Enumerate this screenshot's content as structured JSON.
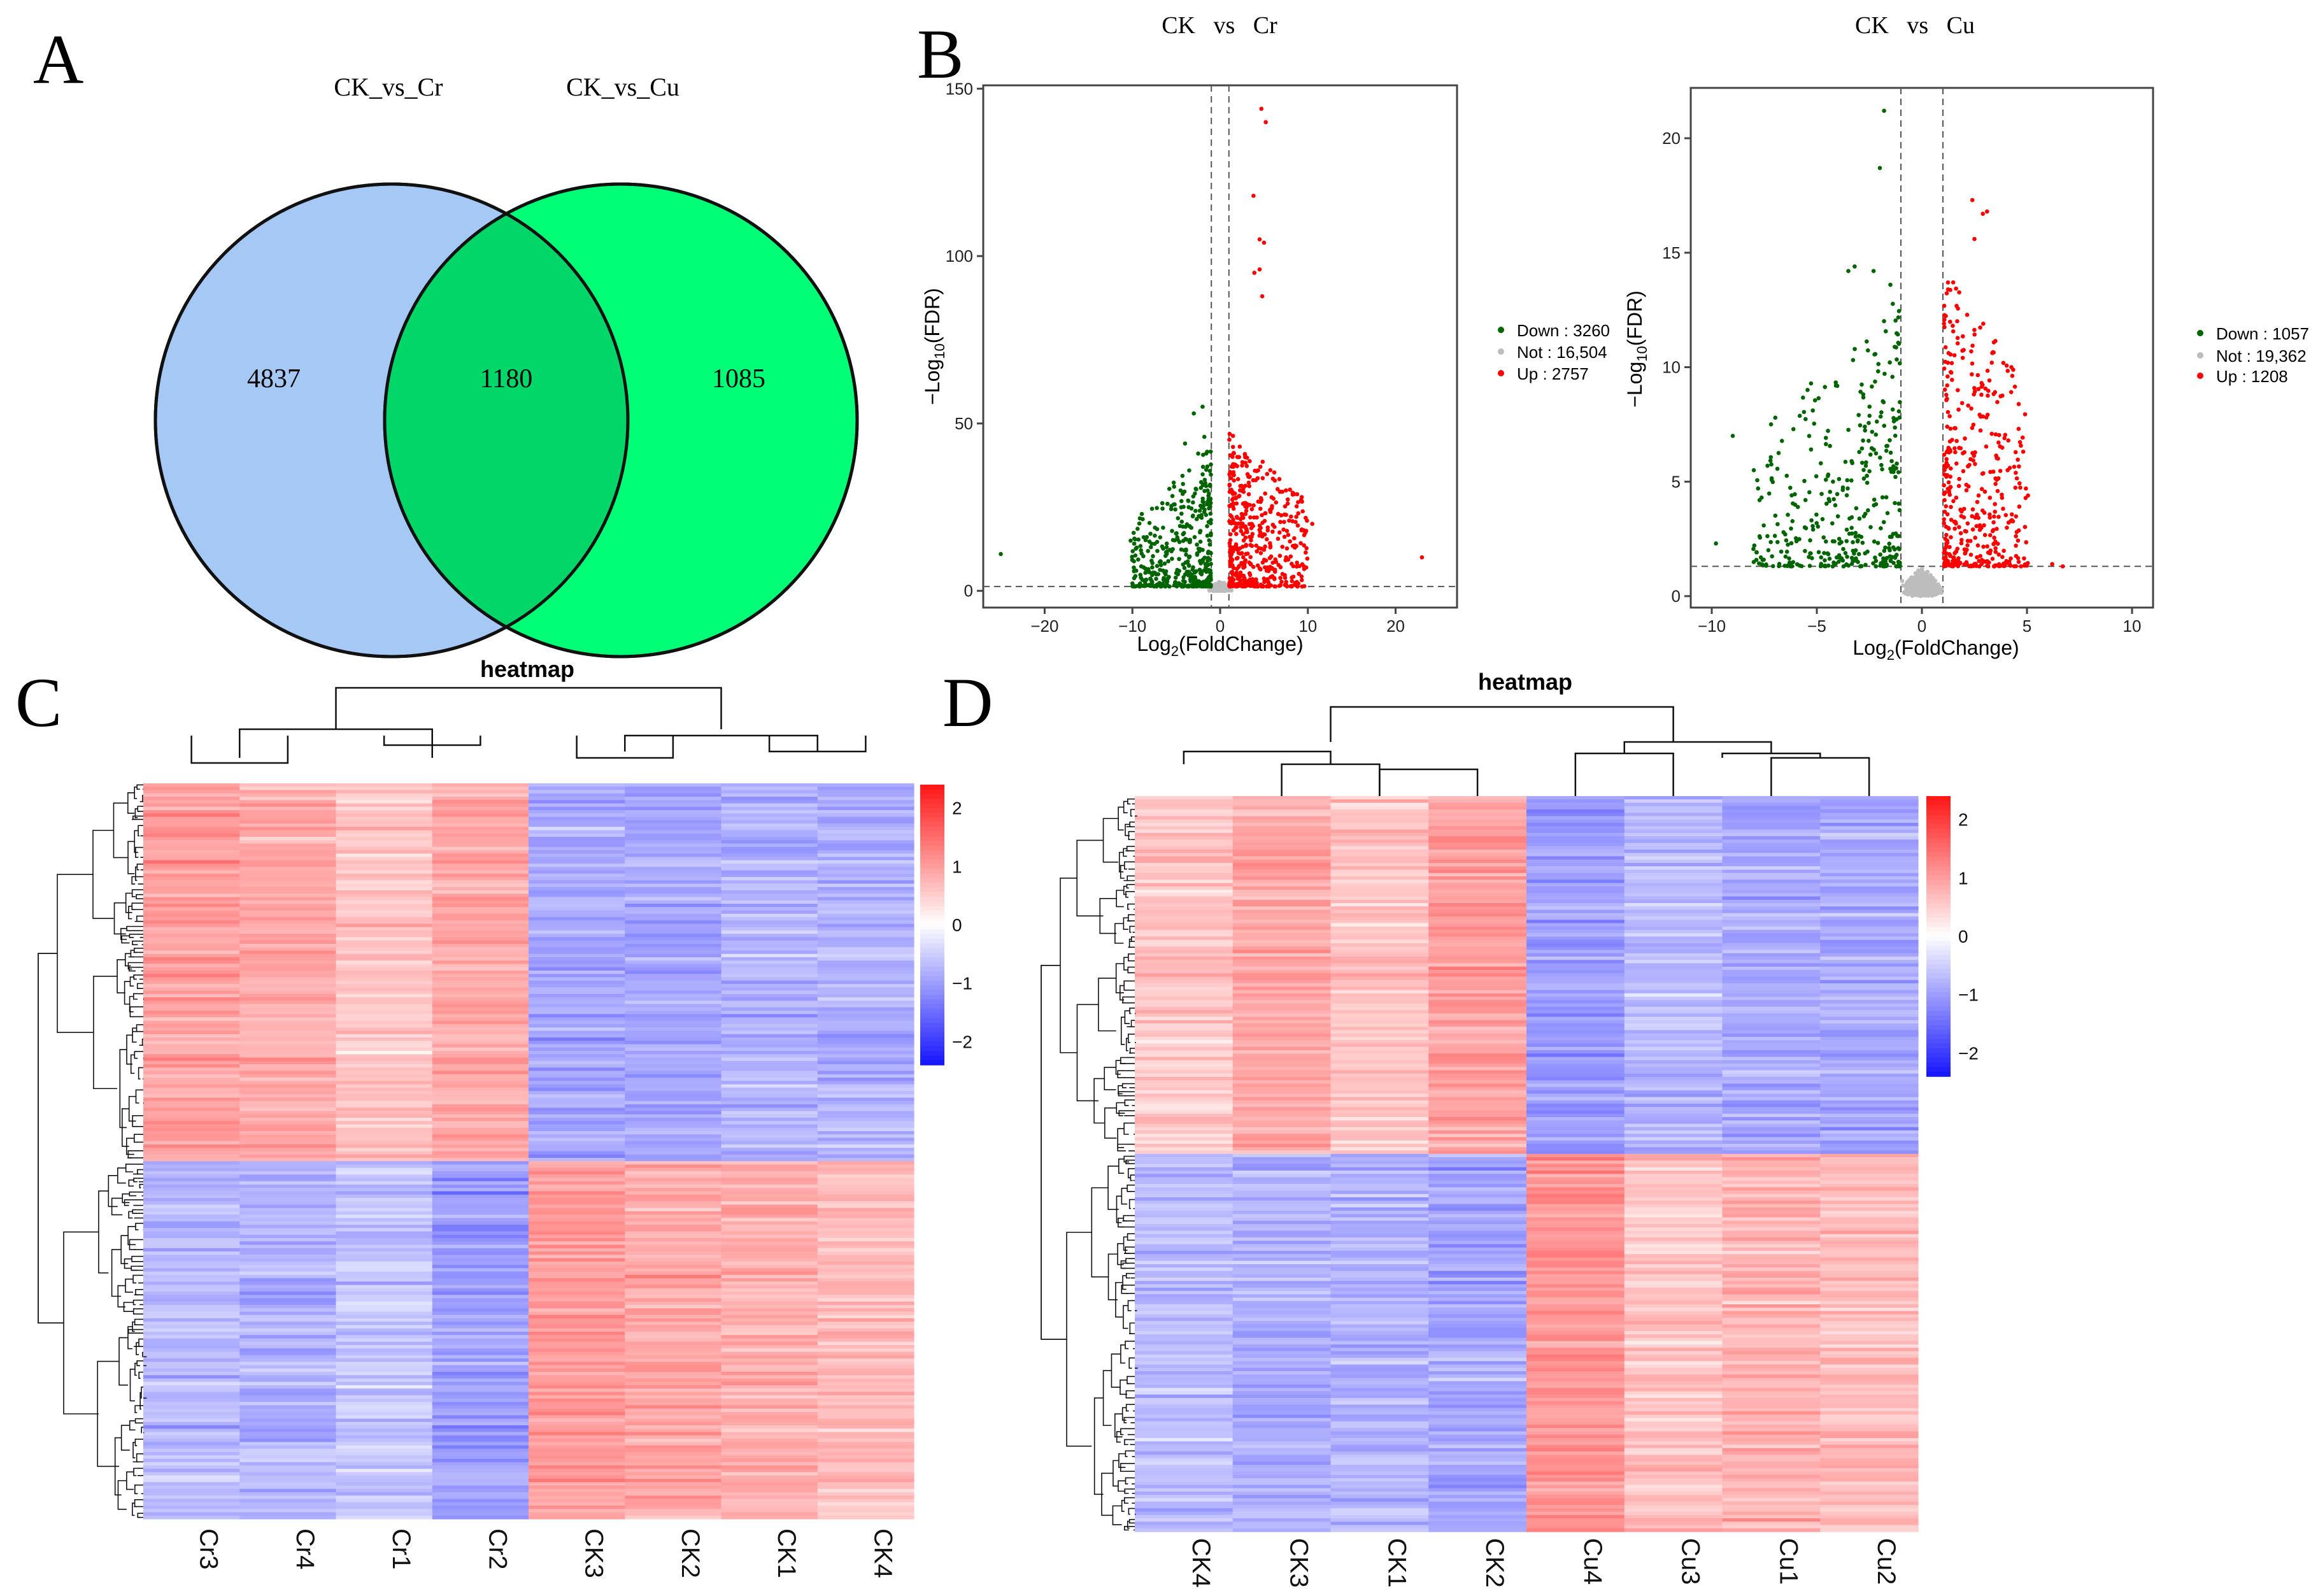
{
  "panels": {
    "a": "A",
    "b": "B",
    "c": "C",
    "d": "D"
  },
  "colors": {
    "venn_left": "#a5c8f4",
    "venn_right": "#00ff77",
    "venn_overlap": "#00d768",
    "down": "#006400",
    "not": "#bdbdbd",
    "up": "#ff0000"
  },
  "chart_data": [
    {
      "type": "venn",
      "sets": [
        "CK_vs_Cr",
        "CK_vs_Cu"
      ],
      "values": {
        "left_only": 4837,
        "both": 1180,
        "right_only": 1085
      }
    },
    {
      "type": "scatter",
      "title": "CK   vs   Cr",
      "xlabel_base": "Log",
      "xlabel_sub": "2",
      "xlabel_rest": "(FoldChange)",
      "ylabel_pre": "−Log",
      "ylabel_sub": "10",
      "ylabel_rest": "(FDR)",
      "xlim": [
        -27,
        27
      ],
      "ylim": [
        -5,
        151
      ],
      "xticks": [
        -20,
        -10,
        0,
        10,
        20
      ],
      "yticks": [
        0,
        50,
        100,
        150
      ],
      "vlines": [
        -1,
        1
      ],
      "hline": 1.3,
      "legend": [
        {
          "label": "Down : 3260",
          "color": "#006400"
        },
        {
          "label": "Not : 16,504",
          "color": "#bdbdbd"
        },
        {
          "label": "Up : 2757",
          "color": "#ff0000"
        }
      ],
      "outliers": [
        [
          -25,
          11
        ],
        [
          23,
          10
        ],
        [
          4.7,
          144
        ],
        [
          5.2,
          140
        ],
        [
          3.8,
          118
        ],
        [
          4.5,
          105
        ],
        [
          5,
          104
        ],
        [
          4.5,
          96
        ],
        [
          3.9,
          95
        ],
        [
          4.8,
          88
        ],
        [
          -2,
          55
        ],
        [
          -3,
          53
        ],
        [
          -1.8,
          46
        ],
        [
          -4,
          44
        ],
        [
          -2.5,
          41
        ],
        [
          -10.2,
          15
        ],
        [
          -6,
          26
        ],
        [
          9.3,
          28
        ],
        [
          7.5,
          30
        ],
        [
          10.5,
          20
        ]
      ],
      "gen": {
        "seed": 11,
        "n_down": 420,
        "n_not": 1400,
        "n_up": 480,
        "xmax": 10,
        "xmin": -10,
        "ymax": 42,
        "core_y": 3,
        "core_x": 1.5
      }
    },
    {
      "type": "scatter",
      "title": "CK   vs   Cu",
      "xlabel_base": "Log",
      "xlabel_sub": "2",
      "xlabel_rest": "(FoldChange)",
      "ylabel_pre": "−Log",
      "ylabel_sub": "10",
      "ylabel_rest": "(FDR)",
      "xlim": [
        -11,
        11
      ],
      "ylim": [
        -0.5,
        22.2
      ],
      "xticks": [
        -10,
        -5,
        0,
        5,
        10
      ],
      "yticks": [
        0,
        5,
        10,
        15,
        20
      ],
      "vlines": [
        -1,
        1
      ],
      "hline": 1.3,
      "legend": [
        {
          "label": "Down : 1057",
          "color": "#006400"
        },
        {
          "label": "Not : 19,362",
          "color": "#bdbdbd"
        },
        {
          "label": "Up : 1208",
          "color": "#ff0000"
        }
      ],
      "outliers": [
        [
          -1.8,
          21.2
        ],
        [
          -2,
          18.7
        ],
        [
          -3.5,
          14.2
        ],
        [
          -3.2,
          14.4
        ],
        [
          -1.5,
          13.6
        ],
        [
          -2.3,
          14.2
        ],
        [
          2.4,
          17.3
        ],
        [
          2.9,
          16.7
        ],
        [
          3.1,
          16.8
        ],
        [
          2.5,
          15.6
        ],
        [
          -9,
          7
        ],
        [
          -9.8,
          2.3
        ],
        [
          -8,
          5.5
        ],
        [
          6.7,
          1.3
        ],
        [
          6.2,
          1.4
        ]
      ],
      "gen": {
        "seed": 23,
        "n_down": 380,
        "n_not": 1500,
        "n_up": 430,
        "xmax": 5,
        "xmin": -8,
        "ymax": 12,
        "core_y": 1.2,
        "core_x": 1.1
      }
    },
    {
      "type": "heatmap",
      "title": "heatmap",
      "columns": [
        "Cr3",
        "Cr4",
        "Cr1",
        "Cr2",
        "CK3",
        "CK2",
        "CK1",
        "CK4"
      ],
      "colorbar": {
        "ticks": [
          "2",
          "1",
          "0",
          "−1",
          "−2"
        ],
        "values": [
          2,
          1,
          0,
          -1,
          -2
        ],
        "min": -2.4,
        "max": 2.4
      },
      "blocks": [
        {
          "rows": 0.515,
          "means": [
            1.0,
            0.9,
            0.6,
            0.9,
            -0.9,
            -0.9,
            -0.8,
            -0.8
          ]
        },
        {
          "rows": 0.485,
          "means": [
            -0.7,
            -0.8,
            -0.6,
            -1.0,
            1.0,
            0.9,
            0.8,
            0.7
          ]
        }
      ],
      "gen": {
        "seed": 5,
        "rows": 220
      }
    },
    {
      "type": "heatmap",
      "title": "heatmap",
      "columns": [
        "CK4",
        "CK3",
        "CK1",
        "CK2",
        "Cu4",
        "Cu3",
        "Cu1",
        "Cu2"
      ],
      "colorbar": {
        "ticks": [
          "2",
          "1",
          "0",
          "−1",
          "−2"
        ],
        "values": [
          2,
          1,
          0,
          -1,
          -2
        ],
        "min": -2.4,
        "max": 2.4
      },
      "blocks": [
        {
          "rows": 0.485,
          "means": [
            0.6,
            0.9,
            0.6,
            1.0,
            -1.0,
            -0.7,
            -0.9,
            -0.9
          ]
        },
        {
          "rows": 0.515,
          "means": [
            -0.7,
            -0.8,
            -0.8,
            -0.9,
            1.1,
            0.6,
            0.8,
            0.7
          ]
        }
      ],
      "gen": {
        "seed": 9,
        "rows": 220
      }
    }
  ]
}
